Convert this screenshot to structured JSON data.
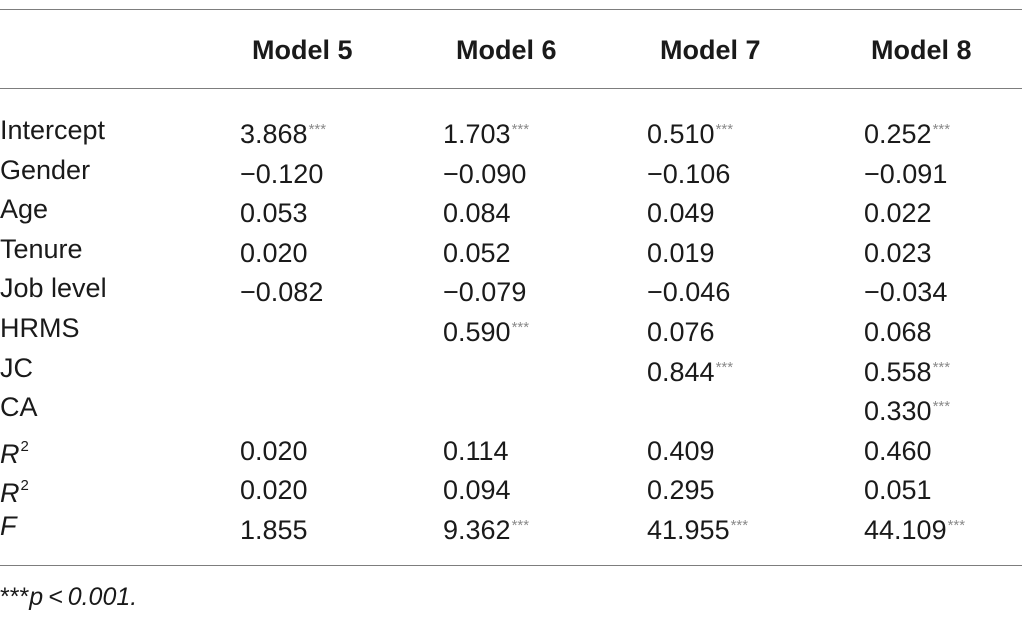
{
  "table": {
    "columns": [
      "Model 5",
      "Model 6",
      "Model 7",
      "Model 8"
    ],
    "rows": [
      {
        "label": "Intercept",
        "cells": [
          {
            "v": "3.868",
            "s": "***"
          },
          {
            "v": "1.703",
            "s": "***"
          },
          {
            "v": "0.510",
            "s": "***"
          },
          {
            "v": "0.252",
            "s": "***"
          }
        ]
      },
      {
        "label": "Gender",
        "cells": [
          {
            "v": "−0.120",
            "s": ""
          },
          {
            "v": "−0.090",
            "s": ""
          },
          {
            "v": "−0.106",
            "s": ""
          },
          {
            "v": "−0.091",
            "s": ""
          }
        ]
      },
      {
        "label": "Age",
        "cells": [
          {
            "v": "0.053",
            "s": ""
          },
          {
            "v": "0.084",
            "s": ""
          },
          {
            "v": "0.049",
            "s": ""
          },
          {
            "v": "0.022",
            "s": ""
          }
        ]
      },
      {
        "label": "Tenure",
        "cells": [
          {
            "v": "0.020",
            "s": ""
          },
          {
            "v": "0.052",
            "s": ""
          },
          {
            "v": "0.019",
            "s": ""
          },
          {
            "v": "0.023",
            "s": ""
          }
        ]
      },
      {
        "label": "Job level",
        "cells": [
          {
            "v": "−0.082",
            "s": ""
          },
          {
            "v": "−0.079",
            "s": ""
          },
          {
            "v": "−0.046",
            "s": ""
          },
          {
            "v": "−0.034",
            "s": ""
          }
        ]
      },
      {
        "label": "HRMS",
        "cells": [
          {
            "v": "",
            "s": ""
          },
          {
            "v": "0.590",
            "s": "***"
          },
          {
            "v": "0.076",
            "s": ""
          },
          {
            "v": "0.068",
            "s": ""
          }
        ]
      },
      {
        "label": "JC",
        "cells": [
          {
            "v": "",
            "s": ""
          },
          {
            "v": "",
            "s": ""
          },
          {
            "v": "0.844",
            "s": "***"
          },
          {
            "v": "0.558",
            "s": "***"
          }
        ]
      },
      {
        "label": "CA",
        "cells": [
          {
            "v": "",
            "s": ""
          },
          {
            "v": "",
            "s": ""
          },
          {
            "v": "",
            "s": ""
          },
          {
            "v": "0.330",
            "s": "***"
          }
        ]
      },
      {
        "label": "R",
        "sup": "2",
        "cells": [
          {
            "v": "0.020",
            "s": ""
          },
          {
            "v": "0.114",
            "s": ""
          },
          {
            "v": "0.409",
            "s": ""
          },
          {
            "v": "0.460",
            "s": ""
          }
        ]
      },
      {
        "label": "R",
        "sup": "2",
        "cells": [
          {
            "v": "0.020",
            "s": ""
          },
          {
            "v": "0.094",
            "s": ""
          },
          {
            "v": "0.295",
            "s": ""
          },
          {
            "v": "0.051",
            "s": ""
          }
        ]
      },
      {
        "label": "F",
        "cells": [
          {
            "v": "1.855",
            "s": ""
          },
          {
            "v": "9.362",
            "s": "***"
          },
          {
            "v": "41.955",
            "s": "***"
          },
          {
            "v": "44.109",
            "s": "***"
          }
        ]
      }
    ]
  },
  "footnote": {
    "stars": "***",
    "text": "p < 0.001."
  }
}
